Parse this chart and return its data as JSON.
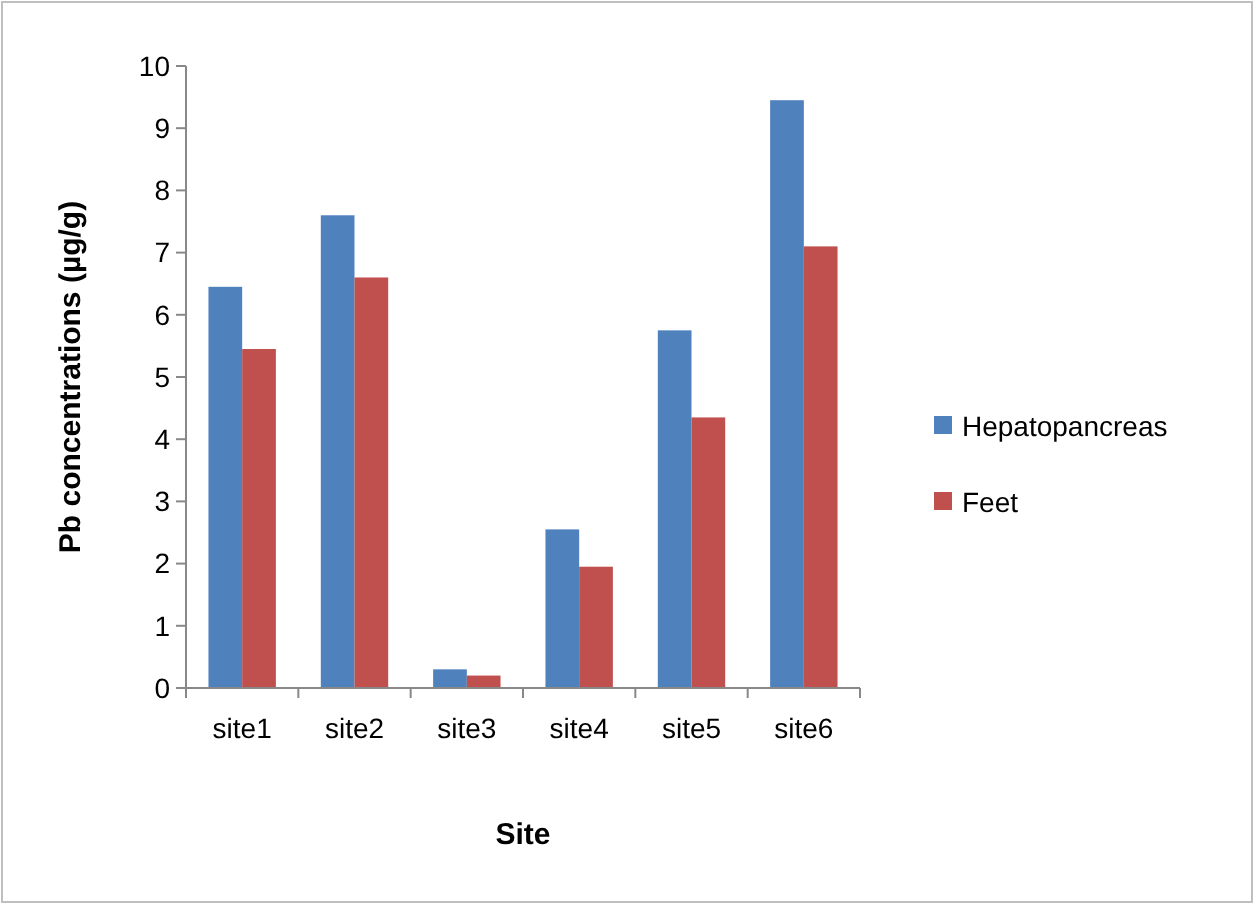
{
  "chart_data": {
    "type": "bar",
    "xlabel": "Site",
    "ylabel": "Pb concentrations (µg/g)",
    "categories": [
      "site1",
      "site2",
      "site3",
      "site4",
      "site5",
      "site6"
    ],
    "series": [
      {
        "name": "Hepatopancreas",
        "color": "#4f81bd",
        "values": [
          6.45,
          7.6,
          0.3,
          2.55,
          5.75,
          9.45
        ]
      },
      {
        "name": "Feet",
        "color": "#c0504d",
        "values": [
          5.45,
          6.6,
          0.2,
          1.95,
          4.35,
          7.1
        ]
      }
    ],
    "ylim": [
      0,
      10
    ],
    "yticks": [
      0,
      1,
      2,
      3,
      4,
      5,
      6,
      7,
      8,
      9,
      10
    ],
    "grid": false,
    "legend": "right"
  }
}
